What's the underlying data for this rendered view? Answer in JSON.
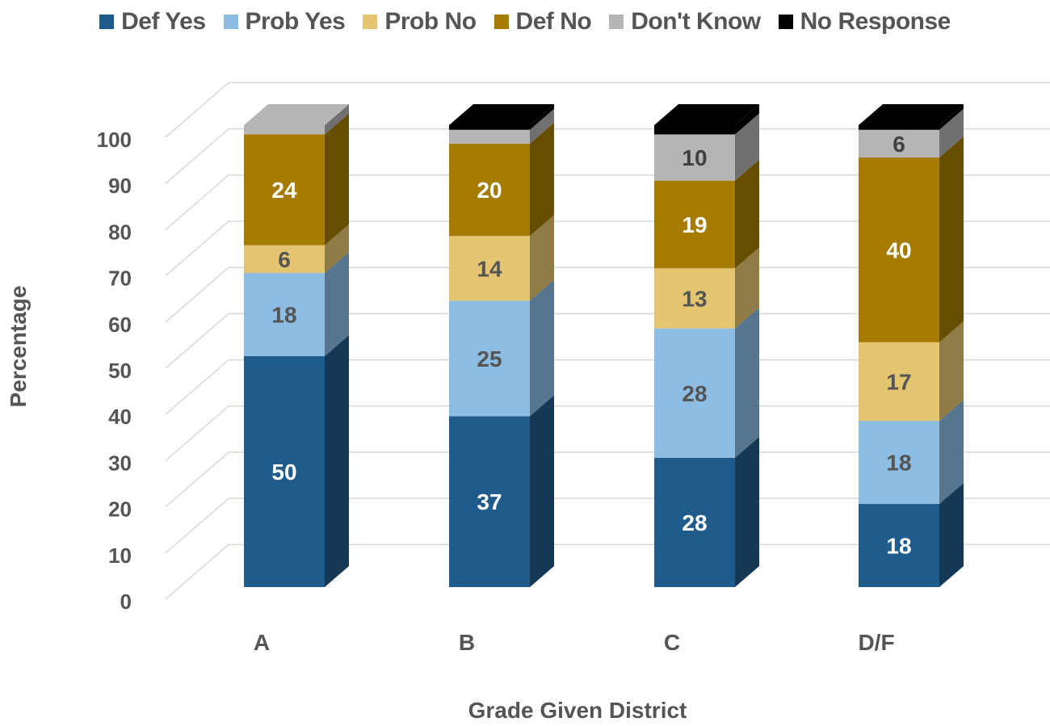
{
  "chart_data": {
    "type": "bar",
    "stacked": true,
    "style": "3d",
    "xlabel": "Grade Given District",
    "ylabel": "Percentage",
    "ylim": [
      0,
      100
    ],
    "yticks": [
      0,
      10,
      20,
      30,
      40,
      50,
      60,
      70,
      80,
      90,
      100
    ],
    "grid": true,
    "legend_position": "top",
    "categories": [
      "A",
      "B",
      "C",
      "D/F"
    ],
    "series": [
      {
        "name": "Def Yes",
        "color": "#1f5c8c",
        "label_color": "#ffffff",
        "values": [
          50,
          37,
          28,
          18
        ]
      },
      {
        "name": "Prob Yes",
        "color": "#8dbde3",
        "label_color": "#555555",
        "values": [
          18,
          25,
          28,
          18
        ]
      },
      {
        "name": "Prob No",
        "color": "#e5c670",
        "label_color": "#555555",
        "values": [
          6,
          14,
          13,
          17
        ]
      },
      {
        "name": "Def No",
        "color": "#a67c00",
        "label_color": "#ffffff",
        "values": [
          24,
          20,
          19,
          40
        ]
      },
      {
        "name": "Don't Know",
        "color": "#b5b5b5",
        "label_color": "#404040",
        "values": [
          2,
          3,
          10,
          6
        ]
      },
      {
        "name": "No Response",
        "color": "#000000",
        "label_color": "#ffffff",
        "values": [
          0,
          1,
          2,
          1
        ]
      }
    ],
    "data_labels": [
      [
        "50",
        "37",
        "28",
        "18"
      ],
      [
        "18",
        "25",
        "28",
        "18"
      ],
      [
        "6",
        "14",
        "13",
        "17"
      ],
      [
        "24",
        "20",
        "19",
        "40"
      ],
      [
        "",
        "",
        "10",
        "6"
      ],
      [
        "",
        "",
        "",
        ""
      ]
    ]
  }
}
